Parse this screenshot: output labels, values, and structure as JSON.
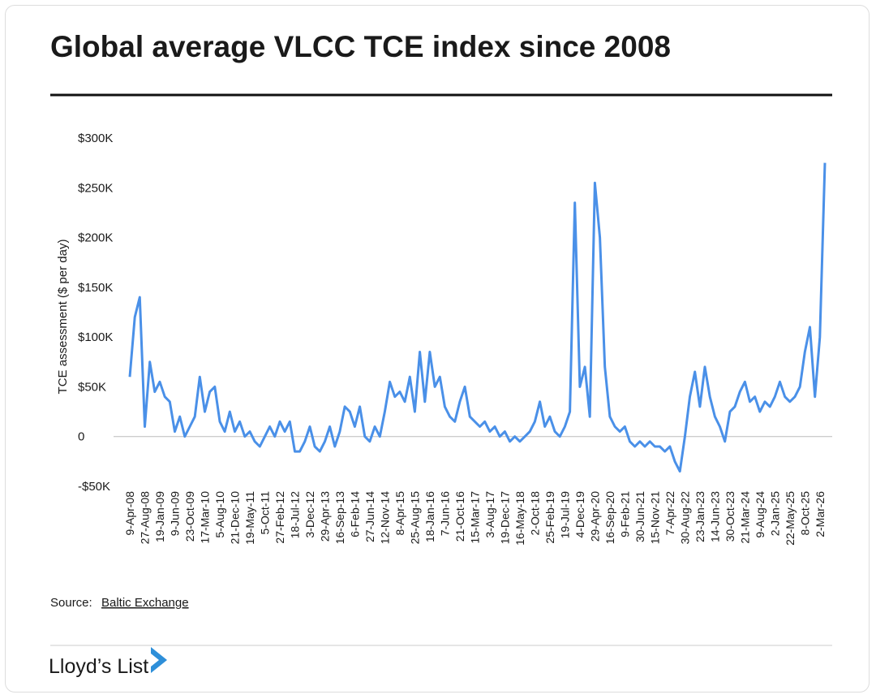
{
  "chart_data": {
    "type": "line",
    "title": "Global average VLCC TCE index since 2008",
    "y_label": "TCE assessment ($ per day)",
    "source_label": "Source:",
    "source_link": "Baltic Exchange",
    "brand": "Lloyd’s List",
    "color": "#4a90e8",
    "grid": false,
    "ylim": [
      -50000,
      300000
    ],
    "yticks": [
      {
        "value": -50000,
        "label": "-$50K"
      },
      0,
      {
        "value": 50000,
        "label": "$50K"
      },
      {
        "value": 100000,
        "label": "$100K"
      },
      {
        "value": 150000,
        "label": "$150K"
      },
      {
        "value": 200000,
        "label": "$200K"
      },
      {
        "value": 250000,
        "label": "$250K"
      },
      {
        "value": 300000,
        "label": "$300K"
      }
    ],
    "categories": [
      "9-Apr-08",
      null,
      null,
      "27-Aug-08",
      null,
      null,
      "19-Jan-09",
      null,
      null,
      "9-Jun-09",
      null,
      null,
      "23-Oct-09",
      null,
      null,
      "17-Mar-10",
      null,
      null,
      "5-Aug-10",
      null,
      null,
      "21-Dec-10",
      null,
      null,
      "19-May-11",
      null,
      null,
      "5-Oct-11",
      null,
      null,
      "27-Feb-12",
      null,
      null,
      "18-Jul-12",
      null,
      null,
      "3-Dec-12",
      null,
      null,
      "29-Apr-13",
      null,
      null,
      "16-Sep-13",
      null,
      null,
      "6-Feb-14",
      null,
      null,
      "27-Jun-14",
      null,
      null,
      "12-Nov-14",
      null,
      null,
      "8-Apr-15",
      null,
      null,
      "25-Aug-15",
      null,
      null,
      "18-Jan-16",
      null,
      null,
      "7-Jun-16",
      null,
      null,
      "21-Oct-16",
      null,
      null,
      "15-Mar-17",
      null,
      null,
      "3-Aug-17",
      null,
      null,
      "19-Dec-17",
      null,
      null,
      "16-May-18",
      null,
      null,
      "2-Oct-18",
      null,
      null,
      "25-Feb-19",
      null,
      null,
      "19-Jul-19",
      null,
      null,
      "4-Dec-19",
      null,
      null,
      "29-Apr-20",
      null,
      null,
      "16-Sep-20",
      null,
      null,
      "9-Feb-21",
      null,
      null,
      "30-Jun-21",
      null,
      null,
      "15-Nov-21",
      null,
      null,
      "7-Apr-22",
      null,
      null,
      "30-Aug-22",
      null,
      null,
      "23-Jan-23",
      null,
      null,
      "14-Jun-23",
      null,
      null,
      "30-Oct-23",
      null,
      null,
      "21-Mar-24",
      null,
      null,
      "9-Aug-24",
      null,
      null,
      "2-Jan-25",
      null,
      null,
      "22-May-25",
      null,
      null,
      "8-Oct-25",
      null,
      null,
      "2-Mar-26",
      null
    ],
    "values": [
      60000,
      120000,
      140000,
      10000,
      75000,
      45000,
      55000,
      40000,
      35000,
      5000,
      20000,
      0,
      10000,
      20000,
      60000,
      25000,
      45000,
      50000,
      15000,
      5000,
      25000,
      5000,
      15000,
      0,
      5000,
      -5000,
      -10000,
      0,
      10000,
      0,
      15000,
      5000,
      15000,
      -15000,
      -15000,
      -5000,
      10000,
      -10000,
      -15000,
      -5000,
      10000,
      -10000,
      5000,
      30000,
      25000,
      10000,
      30000,
      0,
      -5000,
      10000,
      0,
      25000,
      55000,
      40000,
      45000,
      35000,
      60000,
      25000,
      85000,
      35000,
      85000,
      50000,
      60000,
      30000,
      20000,
      15000,
      35000,
      50000,
      20000,
      15000,
      10000,
      15000,
      5000,
      10000,
      0,
      5000,
      -5000,
      0,
      -5000,
      0,
      5000,
      15000,
      35000,
      10000,
      20000,
      5000,
      0,
      10000,
      25000,
      235000,
      50000,
      70000,
      20000,
      255000,
      200000,
      70000,
      20000,
      10000,
      5000,
      10000,
      -5000,
      -10000,
      -5000,
      -10000,
      -5000,
      -10000,
      -10000,
      -15000,
      -10000,
      -25000,
      -35000,
      0,
      40000,
      65000,
      30000,
      70000,
      40000,
      20000,
      10000,
      -5000,
      25000,
      30000,
      45000,
      55000,
      35000,
      40000,
      25000,
      35000,
      30000,
      40000,
      55000,
      40000,
      35000,
      40000,
      50000,
      85000,
      110000,
      40000,
      100000,
      275000
    ]
  }
}
